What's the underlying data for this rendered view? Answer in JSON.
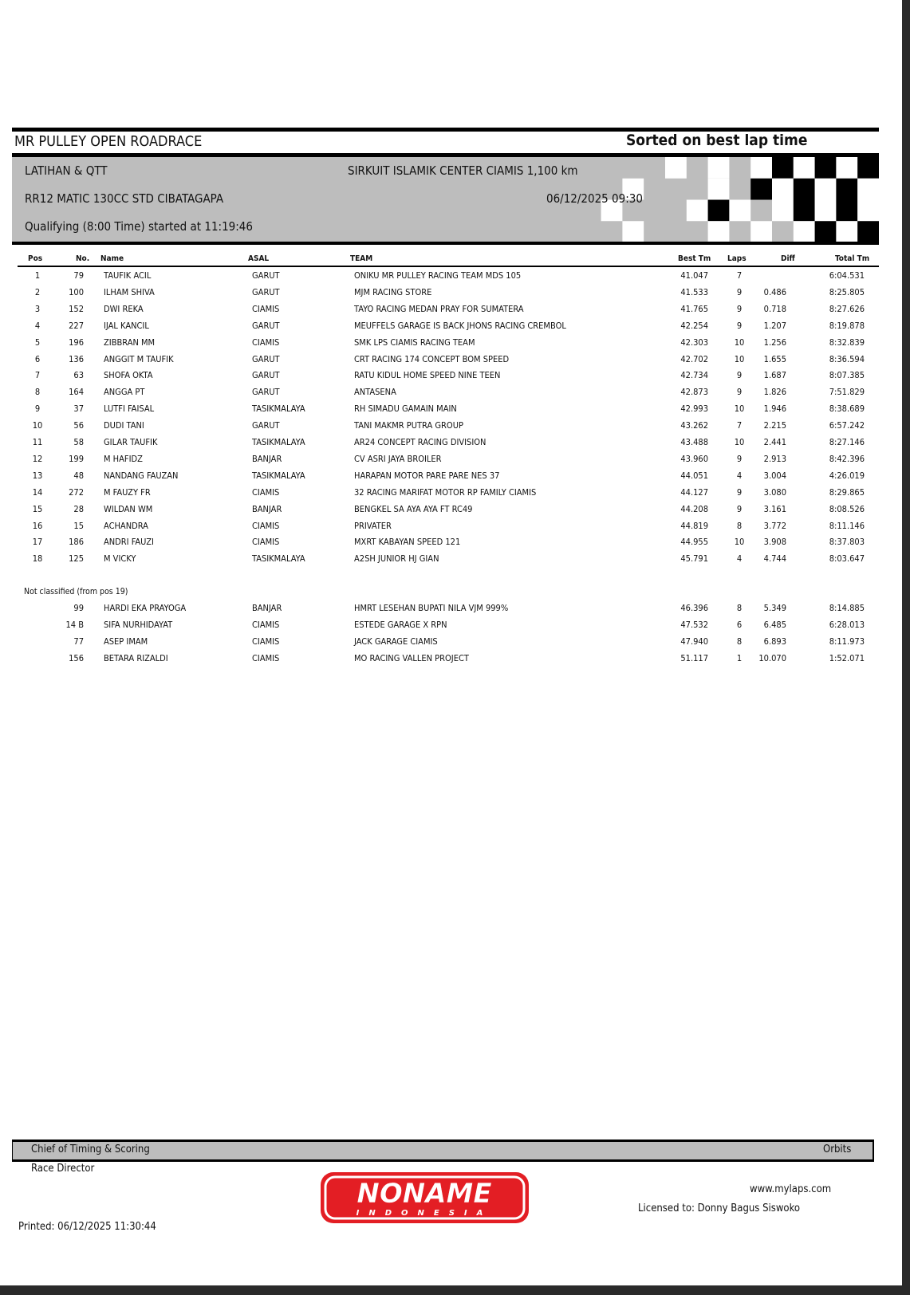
{
  "header": {
    "event_title": "MR PULLEY OPEN ROADRACE",
    "sort_note": "Sorted on best lap time",
    "session_group": "LATIHAN & QTT",
    "circuit": "SIRKUIT ISLAMIK CENTER CIAMIS 1,100 km",
    "class_name": "RR12 MATIC 130CC STD CIBATAGAPA",
    "datetime": "06/12/2025 09:30",
    "session_info": "Qualifying (8:00 Time) started at 11:19:46"
  },
  "columns": {
    "pos": "Pos",
    "no": "No.",
    "name": "Name",
    "asal": "ASAL",
    "team": "TEAM",
    "best": "Best Tm",
    "laps": "Laps",
    "diff": "Diff",
    "total": "Total Tm"
  },
  "classified": [
    {
      "pos": "1",
      "no": "79",
      "name": "TAUFIK ACIL",
      "asal": "GARUT",
      "team": "ONIKU MR PULLEY RACING TEAM MDS 105",
      "best": "41.047",
      "laps": "7",
      "diff": "",
      "total": "6:04.531"
    },
    {
      "pos": "2",
      "no": "100",
      "name": "ILHAM SHIVA",
      "asal": "GARUT",
      "team": "MJM RACING STORE",
      "best": "41.533",
      "laps": "9",
      "diff": "0.486",
      "total": "8:25.805"
    },
    {
      "pos": "3",
      "no": "152",
      "name": "DWI REKA",
      "asal": "CIAMIS",
      "team": "TAYO RACING MEDAN PRAY FOR SUMATERA",
      "best": "41.765",
      "laps": "9",
      "diff": "0.718",
      "total": "8:27.626"
    },
    {
      "pos": "4",
      "no": "227",
      "name": "IJAL KANCIL",
      "asal": "GARUT",
      "team": "MEUFFELS GARAGE IS BACK JHONS RACING CREMBOL",
      "best": "42.254",
      "laps": "9",
      "diff": "1.207",
      "total": "8:19.878"
    },
    {
      "pos": "5",
      "no": "196",
      "name": "ZIBBRAN MM",
      "asal": "CIAMIS",
      "team": "SMK LPS CIAMIS RACING TEAM",
      "best": "42.303",
      "laps": "10",
      "diff": "1.256",
      "total": "8:32.839"
    },
    {
      "pos": "6",
      "no": "136",
      "name": "ANGGIT M TAUFIK",
      "asal": "GARUT",
      "team": "CRT RACING 174 CONCEPT BOM SPEED",
      "best": "42.702",
      "laps": "10",
      "diff": "1.655",
      "total": "8:36.594"
    },
    {
      "pos": "7",
      "no": "63",
      "name": "SHOFA OKTA",
      "asal": "GARUT",
      "team": "RATU KIDUL HOME SPEED NINE TEEN",
      "best": "42.734",
      "laps": "9",
      "diff": "1.687",
      "total": "8:07.385"
    },
    {
      "pos": "8",
      "no": "164",
      "name": "ANGGA PT",
      "asal": "GARUT",
      "team": "ANTASENA",
      "best": "42.873",
      "laps": "9",
      "diff": "1.826",
      "total": "7:51.829"
    },
    {
      "pos": "9",
      "no": "37",
      "name": "LUTFI FAISAL",
      "asal": "TASIKMALAYA",
      "team": "RH SIMADU GAMAIN MAIN",
      "best": "42.993",
      "laps": "10",
      "diff": "1.946",
      "total": "8:38.689"
    },
    {
      "pos": "10",
      "no": "56",
      "name": "DUDI TANI",
      "asal": "GARUT",
      "team": "TANI MAKMR PUTRA GROUP",
      "best": "43.262",
      "laps": "7",
      "diff": "2.215",
      "total": "6:57.242"
    },
    {
      "pos": "11",
      "no": "58",
      "name": "GILAR TAUFIK",
      "asal": "TASIKMALAYA",
      "team": "AR24 CONCEPT RACING DIVISION",
      "best": "43.488",
      "laps": "10",
      "diff": "2.441",
      "total": "8:27.146"
    },
    {
      "pos": "12",
      "no": "199",
      "name": "M HAFIDZ",
      "asal": "BANJAR",
      "team": "CV ASRI JAYA BROILER",
      "best": "43.960",
      "laps": "9",
      "diff": "2.913",
      "total": "8:42.396"
    },
    {
      "pos": "13",
      "no": "48",
      "name": "NANDANG FAUZAN",
      "asal": "TASIKMALAYA",
      "team": "HARAPAN MOTOR PARE PARE NES 37",
      "best": "44.051",
      "laps": "4",
      "diff": "3.004",
      "total": "4:26.019"
    },
    {
      "pos": "14",
      "no": "272",
      "name": "M FAUZY FR",
      "asal": "CIAMIS",
      "team": "32 RACING MARIFAT MOTOR RP FAMILY CIAMIS",
      "best": "44.127",
      "laps": "9",
      "diff": "3.080",
      "total": "8:29.865"
    },
    {
      "pos": "15",
      "no": "28",
      "name": "WILDAN WM",
      "asal": "BANJAR",
      "team": "BENGKEL SA AYA AYA FT RC49",
      "best": "44.208",
      "laps": "9",
      "diff": "3.161",
      "total": "8:08.526"
    },
    {
      "pos": "16",
      "no": "15",
      "name": "ACHANDRA",
      "asal": "CIAMIS",
      "team": "PRIVATER",
      "best": "44.819",
      "laps": "8",
      "diff": "3.772",
      "total": "8:11.146"
    },
    {
      "pos": "17",
      "no": "186",
      "name": "ANDRI FAUZI",
      "asal": "CIAMIS",
      "team": "MXRT KABAYAN SPEED 121",
      "best": "44.955",
      "laps": "10",
      "diff": "3.908",
      "total": "8:37.803"
    },
    {
      "pos": "18",
      "no": "125",
      "name": "M VICKY",
      "asal": "TASIKMALAYA",
      "team": "A2SH JUNIOR HJ GIAN",
      "best": "45.791",
      "laps": "4",
      "diff": "4.744",
      "total": "8:03.647"
    }
  ],
  "not_classified_label": "Not classified (from pos 19)",
  "not_classified": [
    {
      "pos": "",
      "no": "99",
      "name": "HARDI EKA PRAYOGA",
      "asal": "BANJAR",
      "team": "HMRT LESEHAN BUPATI NILA VJM 999%",
      "best": "46.396",
      "laps": "8",
      "diff": "5.349",
      "total": "8:14.885"
    },
    {
      "pos": "",
      "no": "14 B",
      "name": "SIFA NURHIDAYAT",
      "asal": "CIAMIS",
      "team": "ESTEDE GARAGE X RPN",
      "best": "47.532",
      "laps": "6",
      "diff": "6.485",
      "total": "6:28.013"
    },
    {
      "pos": "",
      "no": "77",
      "name": "ASEP IMAM",
      "asal": "CIAMIS",
      "team": "JACK GARAGE CIAMIS",
      "best": "47.940",
      "laps": "8",
      "diff": "6.893",
      "total": "8:11.973"
    },
    {
      "pos": "",
      "no": "156",
      "name": "BETARA RIZALDI",
      "asal": "CIAMIS",
      "team": "MO RACING VALLEN PROJECT",
      "best": "51.117",
      "laps": "1",
      "diff": "10.070",
      "total": "1:52.071"
    }
  ],
  "footer": {
    "chief": "Chief of Timing & Scoring",
    "orbits": "Orbits",
    "race_director": "Race Director",
    "website": "www.mylaps.com",
    "licensed": "Licensed to:  Donny Bagus Siswoko",
    "printed": "Printed: 06/12/2025 11:30:44",
    "logo_text": "NONAME",
    "logo_sub": "INDONESIA",
    "logo_color": "#e31e24"
  }
}
